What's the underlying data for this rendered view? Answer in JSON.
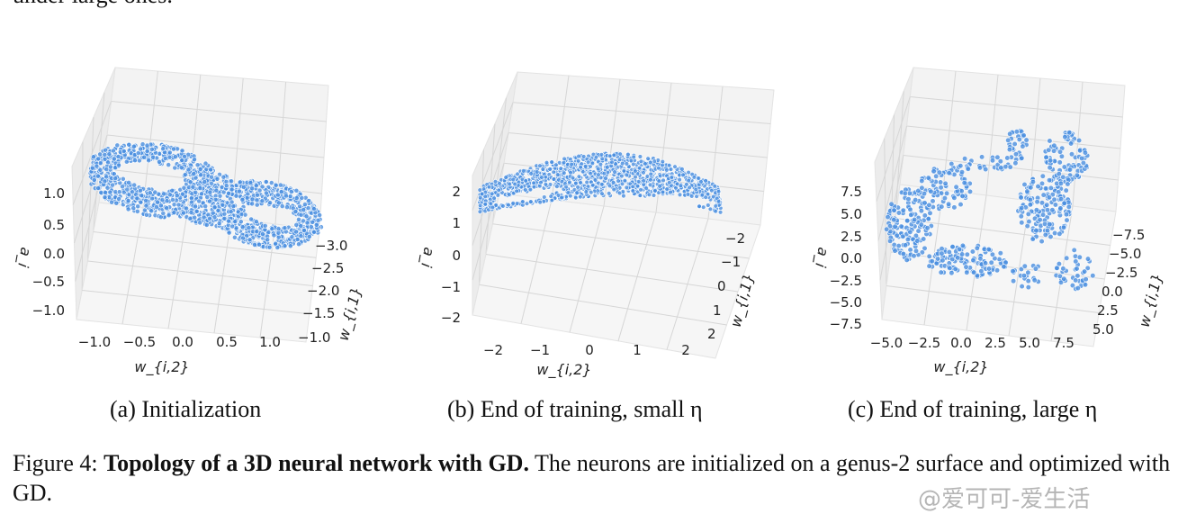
{
  "top_text": "under large ones.",
  "figure": {
    "panels": [
      {
        "id": "a",
        "subcaption": "(a) Initialization",
        "z_label": "a_i",
        "x_label": "w_{i,2}",
        "y_label": "w_{i,1}",
        "z_ticks": [
          "1.0",
          "0.5",
          "0.0",
          "−0.5",
          "−1.0"
        ],
        "x_ticks": [
          "−1.0",
          "−0.5",
          "0.0",
          "0.5",
          "1.0"
        ],
        "y_ticks": [
          "−3.0",
          "−2.5",
          "−2.0",
          "−1.5",
          "−1.0"
        ]
      },
      {
        "id": "b",
        "subcaption": "(b) End of training, small η",
        "z_label": "a_i",
        "x_label": "w_{i,2}",
        "y_label": "w_{i,1}",
        "z_ticks": [
          "2",
          "1",
          "0",
          "−1",
          "−2"
        ],
        "x_ticks": [
          "−2",
          "−1",
          "0",
          "1",
          "2"
        ],
        "y_ticks": [
          "−2",
          "−1",
          "0",
          "1",
          "2"
        ]
      },
      {
        "id": "c",
        "subcaption": "(c) End of training, large η",
        "z_label": "a_i",
        "x_label": "w_{i,2}",
        "y_label": "w_{i,1}",
        "z_ticks": [
          "7.5",
          "5.0",
          "2.5",
          "0.0",
          "−2.5",
          "−5.0",
          "−7.5"
        ],
        "x_ticks": [
          "−5.0",
          "−2.5",
          "0.0",
          "2.5",
          "5.0",
          "7.5"
        ],
        "y_ticks": [
          "−7.5",
          "−5.0",
          "−2.5",
          "0.0",
          "2.5",
          "5.0"
        ]
      }
    ],
    "point_color": "#4a8fe0",
    "caption_label": "Figure 4:",
    "caption_bold": "Topology of a 3D neural network with GD.",
    "caption_rest": " The neurons are initialized on a genus-2 surface and optimized with GD."
  },
  "watermark": "@爱可可-爱生活"
}
